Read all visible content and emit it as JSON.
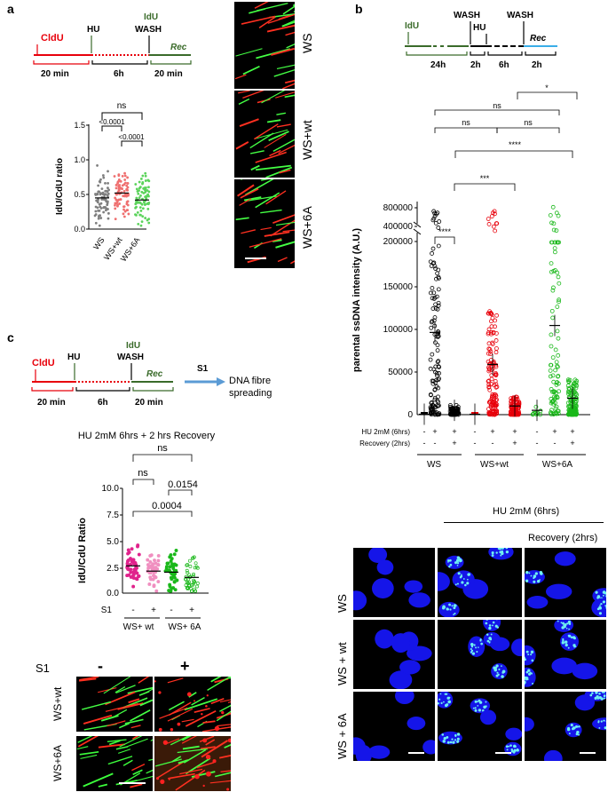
{
  "panels": {
    "a": "a",
    "b": "b",
    "c": "c"
  },
  "panel_a": {
    "timeline": {
      "cldu": "CldU",
      "hu": "HU",
      "idu": "IdU",
      "wash": "WASH",
      "rec": "Rec",
      "t1": "20 min",
      "t2": "6h",
      "t3": "20 min"
    },
    "chart": {
      "ylabel": "IdU/CdU ratio",
      "yticks": [
        "0.0",
        "0.5",
        "1.0",
        "1.5"
      ],
      "categories": [
        "WS",
        "WS+wt",
        "WS+6A"
      ],
      "sig": [
        "ns",
        "<0.0001",
        "<0.0001"
      ]
    },
    "image_labels": [
      "WS",
      "WS+wt",
      "WS+6A"
    ]
  },
  "panel_b": {
    "timeline": {
      "idu": "IdU",
      "wash1": "WASH",
      "hu": "HU",
      "wash2": "WASH",
      "rec": "Rec",
      "t1": "24h",
      "t2": "2h",
      "t3": "6h",
      "t4": "2h"
    },
    "chart": {
      "ylabel": "parental ssDNA intensity (A.U.)",
      "yticks_upper": [
        "800000",
        "400000"
      ],
      "yticks_lower": [
        "200000",
        "150000",
        "100000",
        "50000",
        "0"
      ],
      "row1_label": "HU 2mM (6hrs)",
      "row2_label": "Recovery (2hrs)",
      "row1": [
        "-",
        "+",
        "+",
        "-",
        "+",
        "+",
        "-",
        "+",
        "+"
      ],
      "row2": [
        "-",
        "-",
        "+",
        "-",
        "-",
        "+",
        "-",
        "-",
        "+"
      ],
      "groups": [
        "WS",
        "WS+wt",
        "WS+6A"
      ],
      "sig": [
        "*",
        "ns",
        "ns",
        "ns",
        "****",
        "***",
        "****"
      ]
    },
    "image_header": {
      "hu": "HU 2mM (6hrs)",
      "rec": "Recovery (2hrs)"
    },
    "image_rows": [
      "WS",
      "WS + wt",
      "WS + 6A"
    ]
  },
  "panel_c": {
    "timeline": {
      "cldu": "CldU",
      "hu": "HU",
      "idu": "IdU",
      "wash": "WASH",
      "rec": "Rec",
      "t1": "20 min",
      "t2": "6h",
      "t3": "20 min",
      "s1": "S1",
      "spread1": "DNA fibre",
      "spread2": "spreading"
    },
    "chart": {
      "title": "HU 2mM 6hrs + 2 hrs Recovery",
      "ylabel": "IdU/CdU Ratio",
      "yticks": [
        "10.0",
        "7.5",
        "5.0",
        "2.5",
        "0.0"
      ],
      "s1_label": "S1",
      "s1": [
        "-",
        "+",
        "-",
        "+"
      ],
      "groups": [
        "WS+ wt",
        "WS+ 6A"
      ],
      "sig": [
        "ns",
        "ns",
        "0.0154",
        "0.0004"
      ]
    },
    "image_cols": {
      "label": "S1",
      "minus": "-",
      "plus": "+"
    },
    "image_rows": [
      "WS+wt",
      "WS+6A"
    ]
  },
  "chart_data": [
    {
      "type": "scatter",
      "title": "",
      "ylabel": "IdU/CdU ratio",
      "categories": [
        "WS",
        "WS+wt",
        "WS+6A"
      ],
      "means": [
        0.45,
        0.52,
        0.42
      ],
      "ylim": [
        0,
        1.5
      ],
      "colors": [
        "#7f7f7f",
        "#ef6f6f",
        "#5bd35b"
      ]
    },
    {
      "type": "scatter",
      "title": "",
      "ylabel": "parental ssDNA intensity (A.U.)",
      "categories": [
        "WS -/-",
        "WS +/-",
        "WS +/+",
        "WS+wt -/-",
        "WS+wt +/-",
        "WS+wt +/+",
        "WS+6A -/-",
        "WS+6A +/-",
        "WS+6A +/+"
      ],
      "means": [
        500,
        95000,
        5000,
        500,
        58000,
        10000,
        5000,
        103000,
        19000
      ],
      "ylim": [
        0,
        200000
      ],
      "colors": [
        "#000000",
        "#000000",
        "#000000",
        "#e8000b",
        "#e8000b",
        "#e8000b",
        "#1ab81a",
        "#1ab81a",
        "#1ab81a"
      ]
    },
    {
      "type": "scatter",
      "title": "HU 2mM 6hrs + 2 hrs Recovery",
      "ylabel": "IdU/CdU Ratio",
      "categories": [
        "WS+ wt S1-",
        "WS+ wt S1+",
        "WS+ 6A S1-",
        "WS+ 6A S1+"
      ],
      "means": [
        2.6,
        2.1,
        2.0,
        1.5
      ],
      "ylim": [
        0,
        10
      ],
      "colors": [
        "#e0238c",
        "#f08fc0",
        "#1ab81a",
        "#1ab81a"
      ]
    }
  ]
}
